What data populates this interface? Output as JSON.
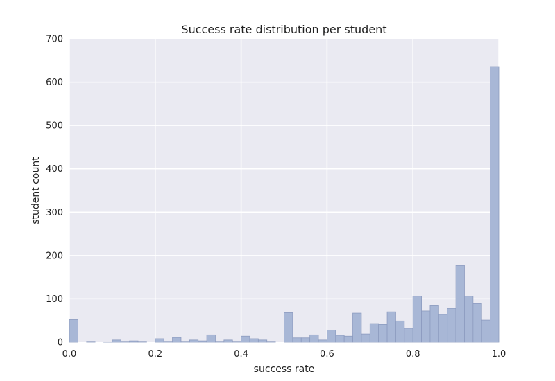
{
  "chart_data": {
    "type": "bar",
    "title": "Success rate distribution per student",
    "xlabel": "success rate",
    "ylabel": "student count",
    "xlim": [
      0.0,
      1.0
    ],
    "ylim": [
      0,
      700
    ],
    "grid": true,
    "x_ticks": [
      "0.0",
      "0.2",
      "0.4",
      "0.6",
      "0.8",
      "1.0"
    ],
    "y_ticks": [
      "0",
      "100",
      "200",
      "300",
      "400",
      "500",
      "600",
      "700"
    ],
    "bin_width": 0.02,
    "bins_start": [
      0.0,
      0.02,
      0.04,
      0.06,
      0.08,
      0.1,
      0.12,
      0.14,
      0.16,
      0.18,
      0.2,
      0.22,
      0.24,
      0.26,
      0.28,
      0.3,
      0.32,
      0.34,
      0.36,
      0.38,
      0.4,
      0.42,
      0.44,
      0.46,
      0.48,
      0.5,
      0.52,
      0.54,
      0.56,
      0.58,
      0.6,
      0.62,
      0.64,
      0.66,
      0.68,
      0.7,
      0.72,
      0.74,
      0.76,
      0.78,
      0.8,
      0.82,
      0.84,
      0.86,
      0.88,
      0.9,
      0.92,
      0.94,
      0.96,
      0.98
    ],
    "values": [
      52,
      0,
      2,
      0,
      1,
      5,
      2,
      3,
      2,
      0,
      8,
      2,
      11,
      2,
      5,
      3,
      17,
      2,
      5,
      2,
      14,
      8,
      5,
      2,
      0,
      68,
      10,
      10,
      17,
      5,
      28,
      16,
      14,
      67,
      19,
      43,
      41,
      70,
      49,
      32,
      106,
      72,
      84,
      64,
      78,
      177,
      106,
      89,
      51,
      636
    ],
    "colors": {
      "background": "#eaeaf2",
      "bar_fill": "#a8b7d6",
      "bar_edge": "#8c9bbf",
      "grid": "#ffffff"
    }
  }
}
